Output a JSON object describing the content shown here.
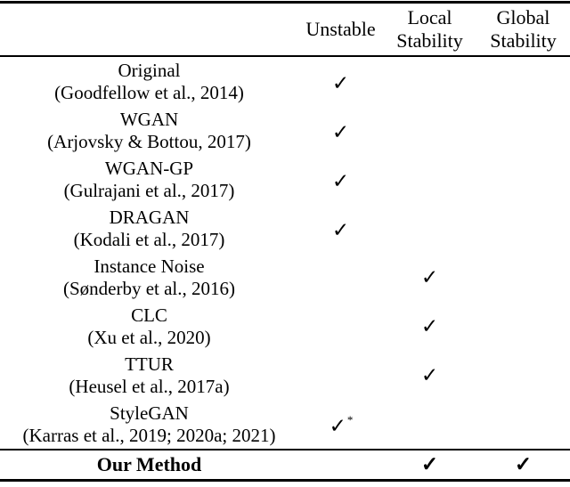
{
  "table": {
    "colors": {
      "text": "#000000",
      "background": "#ffffff"
    },
    "checkmark_glyph": "✓",
    "headers": {
      "method": "",
      "unstable": "Unstable",
      "local": "Local\nStability",
      "global": "Global\nStability"
    },
    "rows": [
      {
        "method": "Original",
        "citation": "(Goodfellow et al., 2014)",
        "unstable": "✓",
        "unstable_note": "",
        "local": "",
        "global": ""
      },
      {
        "method": "WGAN",
        "citation": "(Arjovsky & Bottou, 2017)",
        "unstable": "✓",
        "unstable_note": "",
        "local": "",
        "global": ""
      },
      {
        "method": "WGAN-GP",
        "citation": "(Gulrajani et al., 2017)",
        "unstable": "✓",
        "unstable_note": "",
        "local": "",
        "global": ""
      },
      {
        "method": "DRAGAN",
        "citation": "(Kodali et al., 2017)",
        "unstable": "✓",
        "unstable_note": "",
        "local": "",
        "global": ""
      },
      {
        "method": "Instance Noise",
        "citation": "(Sønderby et al., 2016)",
        "unstable": "",
        "unstable_note": "",
        "local": "✓",
        "global": ""
      },
      {
        "method": "CLC",
        "citation": "(Xu et al., 2020)",
        "unstable": "",
        "unstable_note": "",
        "local": "✓",
        "global": ""
      },
      {
        "method": "TTUR",
        "citation": "(Heusel et al., 2017a)",
        "unstable": "",
        "unstable_note": "",
        "local": "✓",
        "global": ""
      },
      {
        "method": "StyleGAN",
        "citation": "(Karras et al., 2019; 2020a; 2021)",
        "unstable": "✓",
        "unstable_note": "*",
        "local": "",
        "global": ""
      }
    ],
    "final_row": {
      "method": "Our Method",
      "unstable": "",
      "local": "✓",
      "global": "✓"
    }
  }
}
